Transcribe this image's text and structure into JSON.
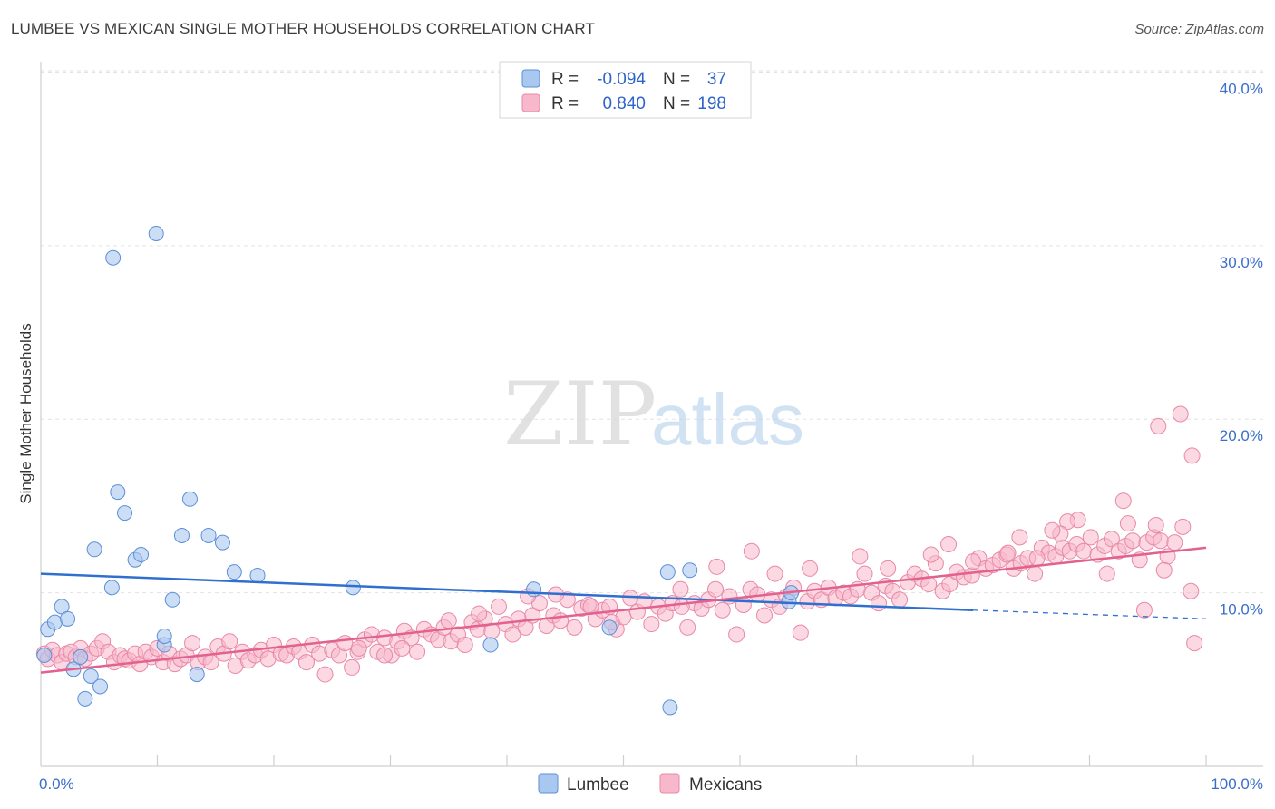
{
  "title": "LUMBEE VS MEXICAN SINGLE MOTHER HOUSEHOLDS CORRELATION CHART",
  "source": "Source: ZipAtlas.com",
  "watermark": {
    "zip": "ZIP",
    "atlas": "atlas"
  },
  "colors": {
    "lumbee_fill": "#a9c8f0",
    "lumbee_stroke": "#5b8fd6",
    "lumbee_line": "#2f6fcf",
    "mexican_fill": "#f7b8cb",
    "mexican_stroke": "#e888a8",
    "mexican_line": "#e2618f"
  },
  "legend_top": {
    "rows": [
      {
        "series": "Lumbee",
        "r_label": "R =",
        "r_value": "-0.094",
        "n_label": "N =",
        "n_value": "37"
      },
      {
        "series": "Mexicans",
        "r_label": "R =",
        "r_value": "0.840",
        "n_label": "N =",
        "n_value": "198"
      }
    ]
  },
  "chart_data": {
    "type": "scatter",
    "title": "LUMBEE VS MEXICAN SINGLE MOTHER HOUSEHOLDS CORRELATION CHART",
    "xlabel": "",
    "ylabel": "Single Mother Households",
    "xlim": [
      0,
      100
    ],
    "ylim": [
      0,
      40.6
    ],
    "x_tick_labels": [
      "0.0%",
      "100.0%"
    ],
    "y_ticks": [
      10,
      20,
      30,
      40
    ],
    "y_tick_labels": [
      "10.0%",
      "20.0%",
      "30.0%",
      "40.0%"
    ],
    "legend": [
      "Lumbee",
      "Mexicans"
    ],
    "series": [
      {
        "name": "Lumbee",
        "trend": {
          "x0": 0,
          "y0": 11.1,
          "x1": 80,
          "y1": 9.0,
          "dash_to_x": 100,
          "dash_to_y": 8.5
        },
        "points": [
          [
            0.3,
            6.4
          ],
          [
            0.6,
            7.9
          ],
          [
            1.2,
            8.3
          ],
          [
            1.8,
            9.2
          ],
          [
            2.3,
            8.5
          ],
          [
            2.8,
            5.6
          ],
          [
            3.4,
            6.3
          ],
          [
            3.8,
            3.9
          ],
          [
            4.3,
            5.2
          ],
          [
            4.6,
            12.5
          ],
          [
            5.1,
            4.6
          ],
          [
            6.1,
            10.3
          ],
          [
            6.2,
            29.3
          ],
          [
            6.6,
            15.8
          ],
          [
            7.2,
            14.6
          ],
          [
            8.1,
            11.9
          ],
          [
            8.6,
            12.2
          ],
          [
            9.9,
            30.7
          ],
          [
            10.6,
            7.0
          ],
          [
            10.6,
            7.5
          ],
          [
            11.3,
            9.6
          ],
          [
            12.1,
            13.3
          ],
          [
            12.8,
            15.4
          ],
          [
            13.4,
            5.3
          ],
          [
            14.4,
            13.3
          ],
          [
            15.6,
            12.9
          ],
          [
            16.6,
            11.2
          ],
          [
            18.6,
            11.0
          ],
          [
            26.8,
            10.3
          ],
          [
            38.6,
            7.0
          ],
          [
            42.3,
            10.2
          ],
          [
            48.8,
            8.0
          ],
          [
            53.8,
            11.2
          ],
          [
            54.0,
            3.4
          ],
          [
            55.7,
            11.3
          ],
          [
            64.2,
            9.5
          ],
          [
            64.4,
            10.0
          ]
        ]
      },
      {
        "name": "Mexicans",
        "trend": {
          "x0": 0,
          "y0": 5.4,
          "x1": 100,
          "y1": 12.6
        },
        "points": [
          [
            0.3,
            6.5
          ],
          [
            0.6,
            6.2
          ],
          [
            1.0,
            6.7
          ],
          [
            1.4,
            6.4
          ],
          [
            1.8,
            6.0
          ],
          [
            2.2,
            6.5
          ],
          [
            2.6,
            6.6
          ],
          [
            3.0,
            6.3
          ],
          [
            3.4,
            6.8
          ],
          [
            3.8,
            6.2
          ],
          [
            4.3,
            6.5
          ],
          [
            4.8,
            6.8
          ],
          [
            5.3,
            7.2
          ],
          [
            5.8,
            6.6
          ],
          [
            6.3,
            6.0
          ],
          [
            6.8,
            6.4
          ],
          [
            7.2,
            6.2
          ],
          [
            7.6,
            6.1
          ],
          [
            8.1,
            6.5
          ],
          [
            8.5,
            5.9
          ],
          [
            9.0,
            6.6
          ],
          [
            9.5,
            6.3
          ],
          [
            10.0,
            6.8
          ],
          [
            10.5,
            6.0
          ],
          [
            11.0,
            6.5
          ],
          [
            11.5,
            5.9
          ],
          [
            12.0,
            6.2
          ],
          [
            12.5,
            6.4
          ],
          [
            13.0,
            7.1
          ],
          [
            13.5,
            6.0
          ],
          [
            14.1,
            6.3
          ],
          [
            14.6,
            6.0
          ],
          [
            15.2,
            6.9
          ],
          [
            15.7,
            6.5
          ],
          [
            16.2,
            7.2
          ],
          [
            16.7,
            5.8
          ],
          [
            17.3,
            6.6
          ],
          [
            17.8,
            6.1
          ],
          [
            18.4,
            6.4
          ],
          [
            18.9,
            6.7
          ],
          [
            19.5,
            6.2
          ],
          [
            20.0,
            7.0
          ],
          [
            20.6,
            6.5
          ],
          [
            21.1,
            6.4
          ],
          [
            21.7,
            6.9
          ],
          [
            22.2,
            6.6
          ],
          [
            22.8,
            6.0
          ],
          [
            23.3,
            7.0
          ],
          [
            23.9,
            6.5
          ],
          [
            24.4,
            5.3
          ],
          [
            25.0,
            6.7
          ],
          [
            25.6,
            6.4
          ],
          [
            26.1,
            7.1
          ],
          [
            26.7,
            5.7
          ],
          [
            27.2,
            6.6
          ],
          [
            27.8,
            7.3
          ],
          [
            28.4,
            7.6
          ],
          [
            28.9,
            6.6
          ],
          [
            29.5,
            7.4
          ],
          [
            30.1,
            6.4
          ],
          [
            30.6,
            7.2
          ],
          [
            31.2,
            7.8
          ],
          [
            31.8,
            7.4
          ],
          [
            32.3,
            6.6
          ],
          [
            32.9,
            7.9
          ],
          [
            33.5,
            7.6
          ],
          [
            34.1,
            7.3
          ],
          [
            34.6,
            8.0
          ],
          [
            35.2,
            7.2
          ],
          [
            35.8,
            7.6
          ],
          [
            36.4,
            7.0
          ],
          [
            37.0,
            8.3
          ],
          [
            37.5,
            7.9
          ],
          [
            38.1,
            8.5
          ],
          [
            38.7,
            7.8
          ],
          [
            39.3,
            9.2
          ],
          [
            39.9,
            8.2
          ],
          [
            40.5,
            7.6
          ],
          [
            41.0,
            8.5
          ],
          [
            41.6,
            8.0
          ],
          [
            42.2,
            8.7
          ],
          [
            42.8,
            9.4
          ],
          [
            43.4,
            8.1
          ],
          [
            44.0,
            8.7
          ],
          [
            44.6,
            8.4
          ],
          [
            45.2,
            9.6
          ],
          [
            45.8,
            8.0
          ],
          [
            46.4,
            9.1
          ],
          [
            47.0,
            9.3
          ],
          [
            47.6,
            8.5
          ],
          [
            48.2,
            9.0
          ],
          [
            48.8,
            9.2
          ],
          [
            49.4,
            7.9
          ],
          [
            50.0,
            8.6
          ],
          [
            50.6,
            9.7
          ],
          [
            51.2,
            8.9
          ],
          [
            51.8,
            9.5
          ],
          [
            52.4,
            8.2
          ],
          [
            53.0,
            9.2
          ],
          [
            53.6,
            8.8
          ],
          [
            54.2,
            9.4
          ],
          [
            54.9,
            10.2
          ],
          [
            55.5,
            8.0
          ],
          [
            56.1,
            9.4
          ],
          [
            56.7,
            9.1
          ],
          [
            57.3,
            9.6
          ],
          [
            57.9,
            10.2
          ],
          [
            58.5,
            9.0
          ],
          [
            59.1,
            9.8
          ],
          [
            59.7,
            7.6
          ],
          [
            60.3,
            9.3
          ],
          [
            60.9,
            10.2
          ],
          [
            61.5,
            9.9
          ],
          [
            62.1,
            8.7
          ],
          [
            62.7,
            9.6
          ],
          [
            63.4,
            9.2
          ],
          [
            64.0,
            9.8
          ],
          [
            64.6,
            10.3
          ],
          [
            65.2,
            7.7
          ],
          [
            65.8,
            9.5
          ],
          [
            66.4,
            10.1
          ],
          [
            67.0,
            9.6
          ],
          [
            67.6,
            10.3
          ],
          [
            68.2,
            9.7
          ],
          [
            68.9,
            10.0
          ],
          [
            69.5,
            9.8
          ],
          [
            70.1,
            10.2
          ],
          [
            70.7,
            11.1
          ],
          [
            71.3,
            10.0
          ],
          [
            71.9,
            9.4
          ],
          [
            72.5,
            10.4
          ],
          [
            73.1,
            10.1
          ],
          [
            73.7,
            9.6
          ],
          [
            74.4,
            10.6
          ],
          [
            75.0,
            11.1
          ],
          [
            75.6,
            10.8
          ],
          [
            76.2,
            10.5
          ],
          [
            76.8,
            11.7
          ],
          [
            77.4,
            10.1
          ],
          [
            78.0,
            10.5
          ],
          [
            78.6,
            11.2
          ],
          [
            79.2,
            10.9
          ],
          [
            79.9,
            11.0
          ],
          [
            80.5,
            12.0
          ],
          [
            81.1,
            11.4
          ],
          [
            81.7,
            11.6
          ],
          [
            82.3,
            11.9
          ],
          [
            82.9,
            12.2
          ],
          [
            83.5,
            11.4
          ],
          [
            84.1,
            11.7
          ],
          [
            84.7,
            12.0
          ],
          [
            85.3,
            11.1
          ],
          [
            85.9,
            12.6
          ],
          [
            86.5,
            12.3
          ],
          [
            87.1,
            12.1
          ],
          [
            87.7,
            12.6
          ],
          [
            88.3,
            12.4
          ],
          [
            88.9,
            12.8
          ],
          [
            89.5,
            12.4
          ],
          [
            90.1,
            13.2
          ],
          [
            90.7,
            12.2
          ],
          [
            91.3,
            12.7
          ],
          [
            91.9,
            13.1
          ],
          [
            92.5,
            12.4
          ],
          [
            93.1,
            12.7
          ],
          [
            93.7,
            13.0
          ],
          [
            94.3,
            11.9
          ],
          [
            94.9,
            12.9
          ],
          [
            95.5,
            13.2
          ],
          [
            96.1,
            13.0
          ],
          [
            96.7,
            12.1
          ],
          [
            97.3,
            12.9
          ],
          [
            98.0,
            13.8
          ],
          [
            98.8,
            17.9
          ],
          [
            95.9,
            19.6
          ],
          [
            97.8,
            20.3
          ],
          [
            92.9,
            15.3
          ],
          [
            93.3,
            14.0
          ],
          [
            95.7,
            13.9
          ],
          [
            94.7,
            9.0
          ],
          [
            99.0,
            7.1
          ],
          [
            98.7,
            10.1
          ],
          [
            96.4,
            11.3
          ],
          [
            91.5,
            11.1
          ],
          [
            89.0,
            14.2
          ],
          [
            88.1,
            14.1
          ],
          [
            87.5,
            13.4
          ],
          [
            86.8,
            13.6
          ],
          [
            85.5,
            12.0
          ],
          [
            84.0,
            13.2
          ],
          [
            83.0,
            12.3
          ],
          [
            80.0,
            11.8
          ],
          [
            77.9,
            12.8
          ],
          [
            76.4,
            12.2
          ],
          [
            72.7,
            11.4
          ],
          [
            70.3,
            12.1
          ],
          [
            66.0,
            11.4
          ],
          [
            63.0,
            11.1
          ],
          [
            61.0,
            12.4
          ],
          [
            58.0,
            11.5
          ],
          [
            55.0,
            9.2
          ],
          [
            49.0,
            8.3
          ],
          [
            47.2,
            9.2
          ],
          [
            44.2,
            9.9
          ],
          [
            41.8,
            9.8
          ],
          [
            37.6,
            8.8
          ],
          [
            35.0,
            8.4
          ],
          [
            31.0,
            6.8
          ],
          [
            29.5,
            6.4
          ],
          [
            27.3,
            6.8
          ]
        ]
      }
    ],
    "bottom_legend": [
      "Lumbee",
      "Mexicans"
    ]
  }
}
